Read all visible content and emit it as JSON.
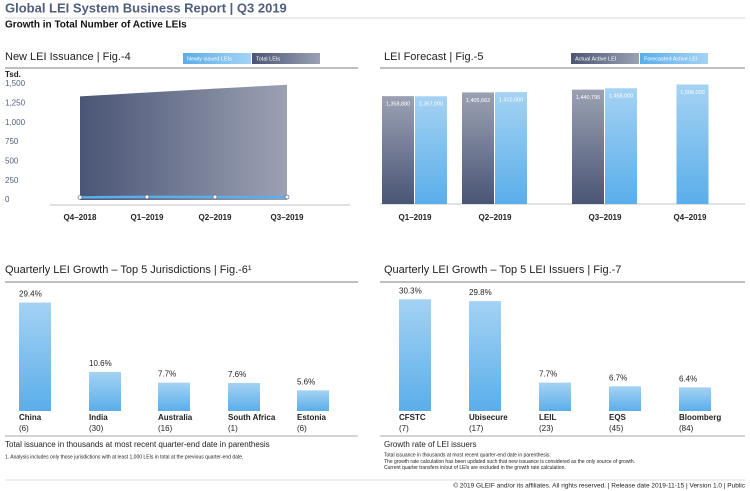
{
  "header": {
    "title": "Global LEI System Business Report | Q3 2019",
    "subtitle": "Growth in Total Number of Active LEIs"
  },
  "chart_data": [
    {
      "type": "area",
      "title": "New LEI Issuance | Fig.-4",
      "y_label": "Tsd.",
      "categories": [
        "Q4–2018",
        "Q1–2019",
        "Q2–2019",
        "Q3–2019"
      ],
      "series": [
        {
          "name": "Newly issued LEIs",
          "color": "#5aaeea",
          "values": [
            34,
            40,
            39,
            38
          ]
        },
        {
          "name": "Total LEIs",
          "color": "#4a5575",
          "values": [
            1340,
            1390,
            1440,
            1490
          ]
        }
      ],
      "ylim": [
        0,
        1500
      ],
      "yticks": [
        0,
        250,
        500,
        750,
        {
          "value": 1000,
          "label": "1,000"
        },
        {
          "value": 1250,
          "label": "1,250"
        },
        {
          "value": 1500,
          "label": "1,500"
        }
      ]
    },
    {
      "type": "bar",
      "title": "LEI Forecast | Fig.-5",
      "categories": [
        "Q1–2019",
        "Q2–2019",
        "Q3–2019",
        "Q4–2019"
      ],
      "series": [
        {
          "name": "Actual Active LEI",
          "color": "#4a5575",
          "values": [
            1358880,
            1405662,
            1440795,
            null
          ],
          "value_labels": [
            "1,358,880",
            "1,405,662",
            "1,440,795",
            null
          ]
        },
        {
          "name": "Forecasted Active LEI",
          "color": "#5aaeea",
          "values": [
            1357000,
            1410000,
            1458000,
            1506000
          ],
          "value_labels": [
            "1,357,000",
            "1,410,000",
            "1,458,000",
            "1,506,000"
          ]
        }
      ],
      "ylim": [
        0,
        1600000
      ]
    },
    {
      "type": "bar",
      "title": "Quarterly LEI Growth – Top 5 Jurisdictions | Fig.-6¹",
      "categories": [
        "China",
        "India",
        "Australia",
        "South Africa",
        "Estonia"
      ],
      "category_notes": [
        "(6)",
        "(30)",
        "(16)",
        "(1)",
        "(6)"
      ],
      "values": [
        29.4,
        10.6,
        7.7,
        7.6,
        5.6
      ],
      "value_labels": [
        "29.4%",
        "10.6%",
        "7.7%",
        "7.6%",
        "5.6%"
      ],
      "color": "#5aaeea",
      "ylim": [
        0,
        32
      ],
      "notes": [
        "Total issuance in thousands at most recent quarter-end date in parenthesis",
        "1. Analysis includes only those jurisdictions with at least 1,000 LEIs in total at the previous quarter-end date."
      ]
    },
    {
      "type": "bar",
      "title": "Quarterly LEI Growth – Top 5 LEI Issuers | Fig.-7",
      "categories": [
        "CFSTC",
        "Ubisecure",
        "LEIL",
        "EQS",
        "Bloomberg"
      ],
      "category_notes": [
        "(7)",
        "(17)",
        "(23)",
        "(45)",
        "(84)"
      ],
      "values": [
        30.3,
        29.8,
        7.7,
        6.7,
        6.4
      ],
      "value_labels": [
        "30.3%",
        "29.8%",
        "7.7%",
        "6.7%",
        "6.4%"
      ],
      "color": "#5aaeea",
      "ylim": [
        0,
        32
      ],
      "notes": [
        "Growth rate of LEI issuers",
        "Total issuance in thousands at most recent quarter-end date in parenthesis.",
        "The growth rate calculation has been updated such that new issuance is considered as the only source of growth. Current quarter transfers in/out of LEIs are excluded in the growth rate calculation."
      ]
    }
  ],
  "footer": "© 2019 GLEIF and/or its affiliates. All rights reserved. | Release date 2019-11-15 | Version 1.0 | Public"
}
